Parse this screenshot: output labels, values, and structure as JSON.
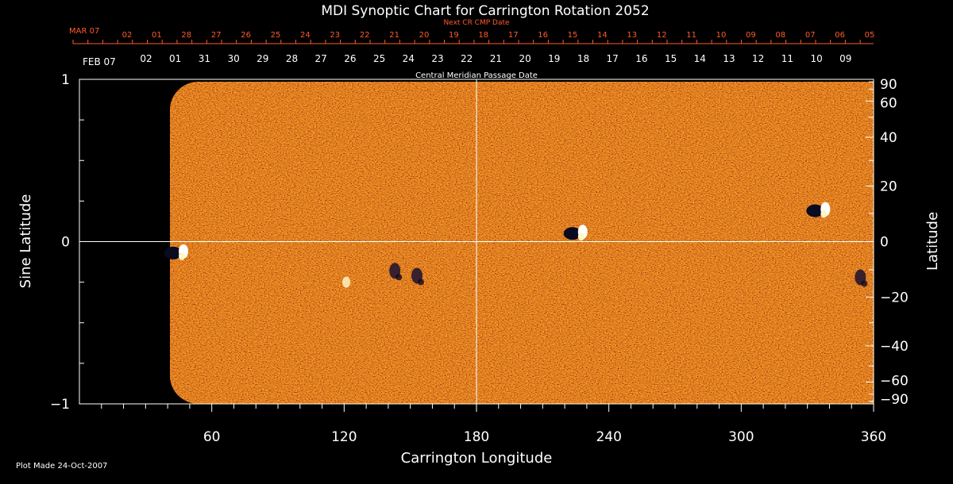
{
  "chart_data": {
    "type": "heatmap",
    "title": "MDI Synoptic Chart for Carrington Rotation 2052",
    "xlabel": "Carrington Longitude",
    "ylabel_left": "Sine Latitude",
    "ylabel_right": "Latitude",
    "xlim": [
      0,
      360
    ],
    "ylim_sine": [
      -1,
      1
    ],
    "x_ticks": [
      "60",
      "120",
      "180",
      "240",
      "300",
      "360"
    ],
    "x_tick_values": [
      60,
      120,
      180,
      240,
      300,
      360
    ],
    "left_ticks": [
      "1",
      "0",
      "−1"
    ],
    "left_tick_values": [
      1,
      0,
      -1
    ],
    "right_ticks": [
      "90",
      "60",
      "40",
      "20",
      "0",
      "−20",
      "−40",
      "−60",
      "−90"
    ],
    "right_tick_values": [
      90,
      60,
      40,
      20,
      0,
      -20,
      -40,
      -60,
      -90
    ],
    "top_axis": {
      "label": "Central Meridian Passage Date",
      "start_label": "FEB 07",
      "dates": [
        "02",
        "01",
        "31",
        "30",
        "29",
        "28",
        "27",
        "26",
        "25",
        "24",
        "23",
        "22",
        "21",
        "20",
        "19",
        "18",
        "17",
        "16",
        "15",
        "14",
        "13",
        "12",
        "11",
        "10",
        "09"
      ]
    },
    "next_axis": {
      "label": "Next CR CMP Date",
      "start_label": "MAR 07",
      "dates": [
        "02",
        "01",
        "28",
        "27",
        "26",
        "25",
        "24",
        "23",
        "22",
        "21",
        "20",
        "19",
        "18",
        "17",
        "16",
        "15",
        "14",
        "13",
        "12",
        "11",
        "10",
        "09",
        "08",
        "07",
        "06",
        "05"
      ]
    },
    "data_start_longitude": 41,
    "background_color": "#e04a12",
    "accent_color": "#ff4020",
    "features": [
      {
        "type": "bipolar",
        "longitude": 226,
        "sine_latitude": 0.05
      },
      {
        "type": "bipolar",
        "longitude": 336,
        "sine_latitude": 0.19
      },
      {
        "type": "bipolar",
        "longitude": 45,
        "sine_latitude": -0.07
      },
      {
        "type": "negative",
        "longitude": 153,
        "sine_latitude": -0.21
      },
      {
        "type": "negative",
        "longitude": 143,
        "sine_latitude": -0.18
      },
      {
        "type": "positive",
        "longitude": 121,
        "sine_latitude": -0.25
      },
      {
        "type": "negative",
        "longitude": 354,
        "sine_latitude": -0.22
      }
    ]
  },
  "footer": {
    "plot_made": "Plot Made 24-Oct-2007"
  }
}
